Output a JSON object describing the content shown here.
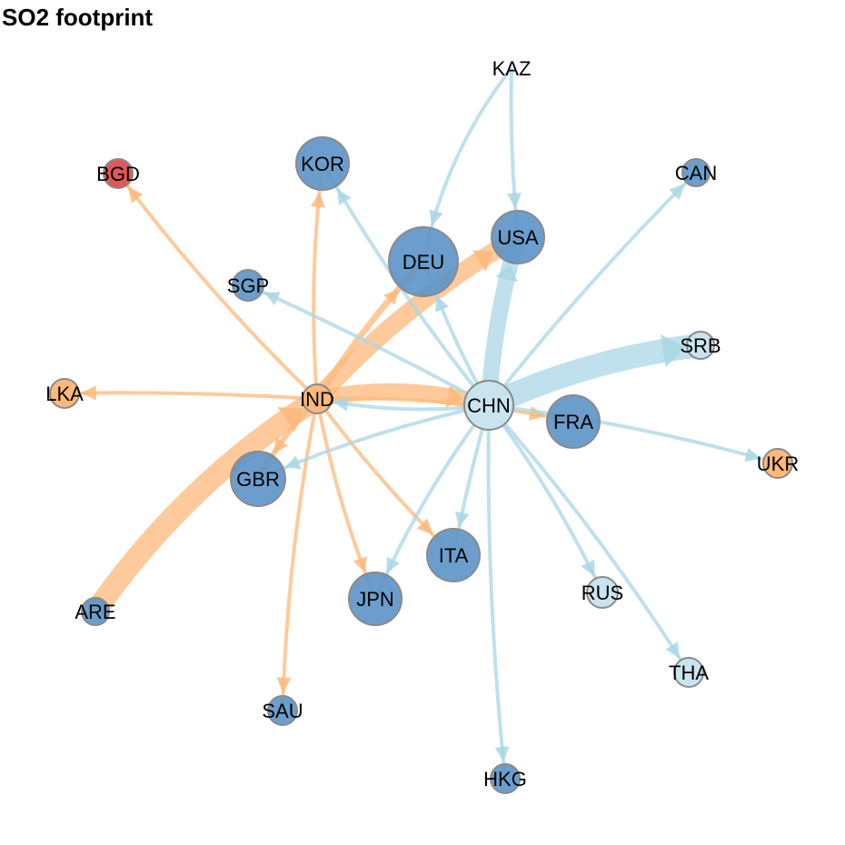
{
  "title": "SO2 footprint",
  "colors": {
    "orange": "#fdb87a",
    "lightblue": "#add8e6",
    "blue": "#5b94c8",
    "red": "#e15759",
    "light_node": "#c9e4ef",
    "edge_orange": "#fdb87a",
    "edge_blue": "#a9d6e5",
    "node_stroke": "#8a8a8a"
  },
  "nodes": [
    {
      "id": "KAZ",
      "label": "KAZ",
      "color": "lightblue",
      "r": 0
    },
    {
      "id": "CAN",
      "label": "CAN",
      "color": "blue",
      "r": 15
    },
    {
      "id": "KOR",
      "label": "KOR",
      "color": "blue",
      "r": 29
    },
    {
      "id": "BGD",
      "label": "BGD",
      "color": "red",
      "r": 16
    },
    {
      "id": "DEU",
      "label": "DEU",
      "color": "blue",
      "r": 38
    },
    {
      "id": "USA",
      "label": "USA",
      "color": "blue",
      "r": 29
    },
    {
      "id": "SGP",
      "label": "SGP",
      "color": "blue",
      "r": 17
    },
    {
      "id": "SRB",
      "label": "SRB",
      "color": "light_node",
      "r": 15
    },
    {
      "id": "LKA",
      "label": "LKA",
      "color": "orange",
      "r": 16
    },
    {
      "id": "IND",
      "label": "IND",
      "color": "orange",
      "r": 16
    },
    {
      "id": "CHN",
      "label": "CHN",
      "color": "light_node",
      "r": 27
    },
    {
      "id": "FRA",
      "label": "FRA",
      "color": "blue",
      "r": 29
    },
    {
      "id": "UKR",
      "label": "UKR",
      "color": "orange",
      "r": 16
    },
    {
      "id": "GBR",
      "label": "GBR",
      "color": "blue",
      "r": 30
    },
    {
      "id": "ITA",
      "label": "ITA",
      "color": "blue",
      "r": 29
    },
    {
      "id": "RUS",
      "label": "RUS",
      "color": "light_node",
      "r": 17
    },
    {
      "id": "JPN",
      "label": "JPN",
      "color": "blue",
      "r": 29
    },
    {
      "id": "ARE",
      "label": "ARE",
      "color": "blue",
      "r": 15
    },
    {
      "id": "THA",
      "label": "THA",
      "color": "light_node",
      "r": 16
    },
    {
      "id": "SAU",
      "label": "SAU",
      "color": "blue",
      "r": 16
    },
    {
      "id": "HKG",
      "label": "HKG",
      "color": "blue",
      "r": 16
    }
  ],
  "edges": [
    {
      "from": "IND",
      "to": "LKA",
      "color": "edge_orange",
      "w": 4
    },
    {
      "from": "IND",
      "to": "BGD",
      "color": "edge_orange",
      "w": 4
    },
    {
      "from": "IND",
      "to": "KOR",
      "color": "edge_orange",
      "w": 4
    },
    {
      "from": "IND",
      "to": "DEU",
      "color": "edge_orange",
      "w": 7
    },
    {
      "from": "IND",
      "to": "USA",
      "color": "edge_orange",
      "w": 20
    },
    {
      "from": "IND",
      "to": "GBR",
      "color": "edge_orange",
      "w": 6
    },
    {
      "from": "IND",
      "to": "JPN",
      "color": "edge_orange",
      "w": 4
    },
    {
      "from": "IND",
      "to": "SAU",
      "color": "edge_orange",
      "w": 4
    },
    {
      "from": "IND",
      "to": "ITA",
      "color": "edge_orange",
      "w": 4
    },
    {
      "from": "IND",
      "to": "CHN",
      "color": "edge_orange",
      "w": 18
    },
    {
      "from": "IND",
      "to": "FRA",
      "color": "edge_orange",
      "w": 4
    },
    {
      "from": "ARE",
      "to": "IND",
      "color": "edge_orange",
      "w": 24
    },
    {
      "from": "CHN",
      "to": "IND",
      "color": "edge_blue",
      "w": 4
    },
    {
      "from": "CHN",
      "to": "KOR",
      "color": "edge_blue",
      "w": 4
    },
    {
      "from": "CHN",
      "to": "SGP",
      "color": "edge_blue",
      "w": 4
    },
    {
      "from": "CHN",
      "to": "DEU",
      "color": "edge_blue",
      "w": 4
    },
    {
      "from": "CHN",
      "to": "USA",
      "color": "edge_blue",
      "w": 18
    },
    {
      "from": "CHN",
      "to": "CAN",
      "color": "edge_blue",
      "w": 4
    },
    {
      "from": "CHN",
      "to": "SRB",
      "color": "edge_blue",
      "w": 26
    },
    {
      "from": "CHN",
      "to": "UKR",
      "color": "edge_blue",
      "w": 4
    },
    {
      "from": "CHN",
      "to": "GBR",
      "color": "edge_blue",
      "w": 4
    },
    {
      "from": "CHN",
      "to": "JPN",
      "color": "edge_blue",
      "w": 4
    },
    {
      "from": "CHN",
      "to": "ITA",
      "color": "edge_blue",
      "w": 4
    },
    {
      "from": "CHN",
      "to": "RUS",
      "color": "edge_blue",
      "w": 4
    },
    {
      "from": "CHN",
      "to": "THA",
      "color": "edge_blue",
      "w": 4
    },
    {
      "from": "CHN",
      "to": "HKG",
      "color": "edge_blue",
      "w": 4
    },
    {
      "from": "KAZ",
      "to": "DEU",
      "color": "edge_blue",
      "w": 4
    },
    {
      "from": "KAZ",
      "to": "USA",
      "color": "edge_blue",
      "w": 4
    }
  ]
}
